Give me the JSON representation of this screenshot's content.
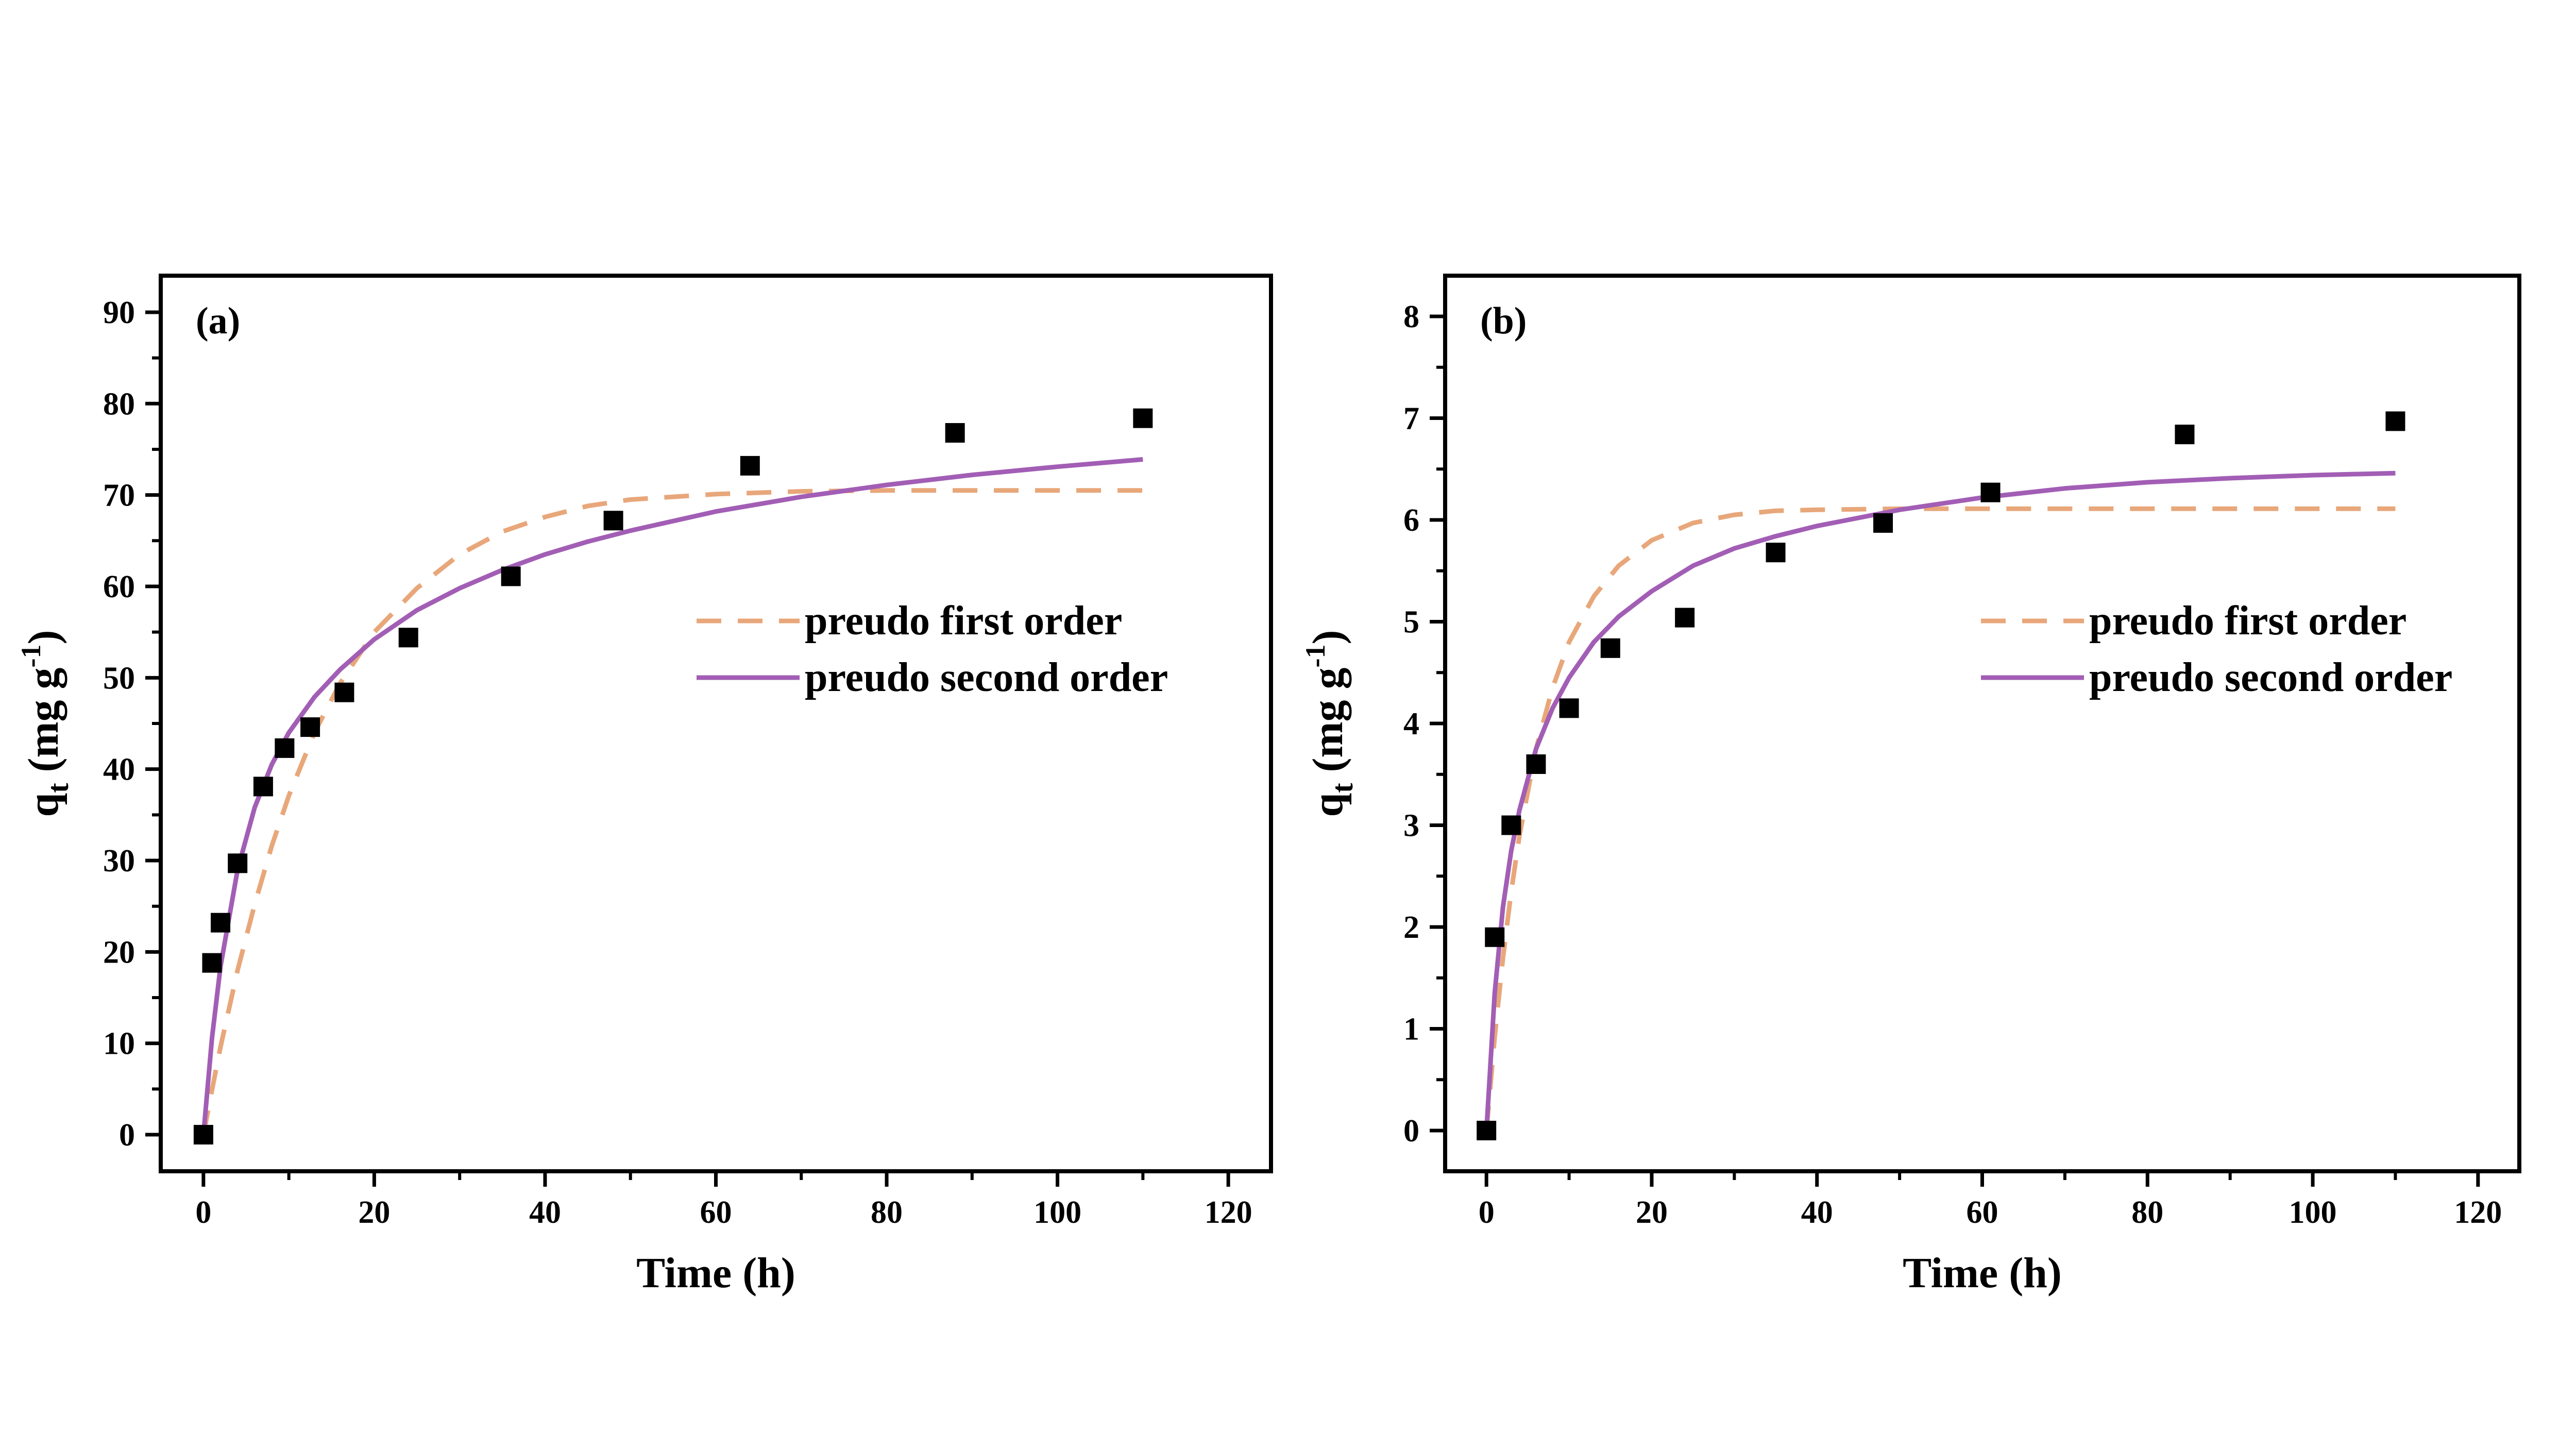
{
  "chart_data": [
    {
      "type": "scatter",
      "panel_label": "(a)",
      "xlabel": "Time (h)",
      "ylabel": {
        "base": "q",
        "sub": "t",
        "unit_open": " (mg g",
        "sup": "-1",
        "unit_close": ")"
      },
      "xlim": [
        -5,
        125
      ],
      "ylim": [
        -4,
        94
      ],
      "xticks": [
        0,
        20,
        40,
        60,
        80,
        100,
        120
      ],
      "yticks": [
        0,
        10,
        20,
        30,
        40,
        50,
        60,
        70,
        80,
        90
      ],
      "grid": false,
      "legend_position": "center-right",
      "series": [
        {
          "kind": "points",
          "marker": "square",
          "color": "#000000",
          "x": [
            0,
            1,
            2,
            4,
            7,
            9.5,
            12.5,
            16.5,
            24,
            36,
            48,
            64,
            88,
            110
          ],
          "y": [
            0,
            18.8,
            23.2,
            29.7,
            38.1,
            42.3,
            44.6,
            48.4,
            54.4,
            61.1,
            67.2,
            73.2,
            76.8,
            78.4
          ]
        },
        {
          "kind": "line",
          "name": "preudo first order",
          "color": "#E8A77A",
          "dash": true,
          "x": [
            0,
            1,
            2,
            4,
            6,
            8,
            10,
            13,
            16,
            20,
            25,
            30,
            35,
            40,
            45,
            50,
            60,
            70,
            80,
            90,
            100,
            110
          ],
          "y": [
            0,
            4.9,
            9.6,
            18,
            25.2,
            31.6,
            37.1,
            44,
            49.4,
            55,
            59.8,
            63.5,
            66,
            67.6,
            68.8,
            69.5,
            70.1,
            70.4,
            70.5,
            70.5,
            70.5,
            70.5
          ]
        },
        {
          "kind": "line",
          "name": "preudo second order",
          "color": "#A25EB5",
          "dash": false,
          "x": [
            0,
            1,
            2,
            4,
            6,
            8,
            10,
            13,
            16,
            20,
            25,
            30,
            35,
            40,
            45,
            50,
            60,
            70,
            80,
            90,
            100,
            110
          ],
          "y": [
            0,
            10.6,
            18.4,
            29,
            35.8,
            40.5,
            44,
            47.9,
            50.9,
            54.2,
            57.4,
            59.8,
            61.8,
            63.5,
            64.9,
            66.1,
            68.2,
            69.8,
            71.1,
            72.2,
            73.1,
            73.9
          ]
        }
      ]
    },
    {
      "type": "scatter",
      "panel_label": "(b)",
      "xlabel": "Time (h)",
      "ylabel": {
        "base": "q",
        "sub": "t",
        "unit_open": " (mg g",
        "sup": "-1",
        "unit_close": ")"
      },
      "xlim": [
        -5,
        125
      ],
      "ylim": [
        -0.4,
        8.4
      ],
      "xticks": [
        0,
        20,
        40,
        60,
        80,
        100,
        120
      ],
      "yticks": [
        0,
        1,
        2,
        3,
        4,
        5,
        6,
        7,
        8
      ],
      "grid": false,
      "legend_position": "center-right",
      "series": [
        {
          "kind": "points",
          "marker": "square",
          "color": "#000000",
          "x": [
            0,
            1,
            3,
            6,
            10,
            15,
            24,
            35,
            48,
            61,
            84.5,
            110
          ],
          "y": [
            0,
            1.9,
            3.0,
            3.6,
            4.15,
            4.74,
            5.04,
            5.68,
            5.97,
            6.27,
            6.84,
            6.97
          ]
        },
        {
          "kind": "line",
          "name": "preudo first order",
          "color": "#E8A77A",
          "dash": true,
          "x": [
            0,
            1,
            2,
            3,
            4,
            6,
            8,
            10,
            13,
            16,
            20,
            25,
            30,
            35,
            40,
            50,
            60,
            70,
            80,
            90,
            100,
            110
          ],
          "y": [
            0,
            0.92,
            1.7,
            2.35,
            2.9,
            3.75,
            4.35,
            4.8,
            5.25,
            5.55,
            5.8,
            5.97,
            6.05,
            6.09,
            6.1,
            6.11,
            6.11,
            6.11,
            6.11,
            6.11,
            6.11,
            6.11
          ]
        },
        {
          "kind": "line",
          "name": "preudo second order",
          "color": "#A25EB5",
          "dash": false,
          "x": [
            0,
            1,
            2,
            3,
            4,
            6,
            8,
            10,
            13,
            16,
            20,
            25,
            30,
            35,
            40,
            50,
            60,
            70,
            80,
            90,
            100,
            110
          ],
          "y": [
            0,
            1.35,
            2.2,
            2.75,
            3.15,
            3.75,
            4.15,
            4.45,
            4.8,
            5.05,
            5.3,
            5.55,
            5.72,
            5.84,
            5.94,
            6.1,
            6.22,
            6.31,
            6.37,
            6.41,
            6.44,
            6.46
          ]
        }
      ]
    }
  ]
}
